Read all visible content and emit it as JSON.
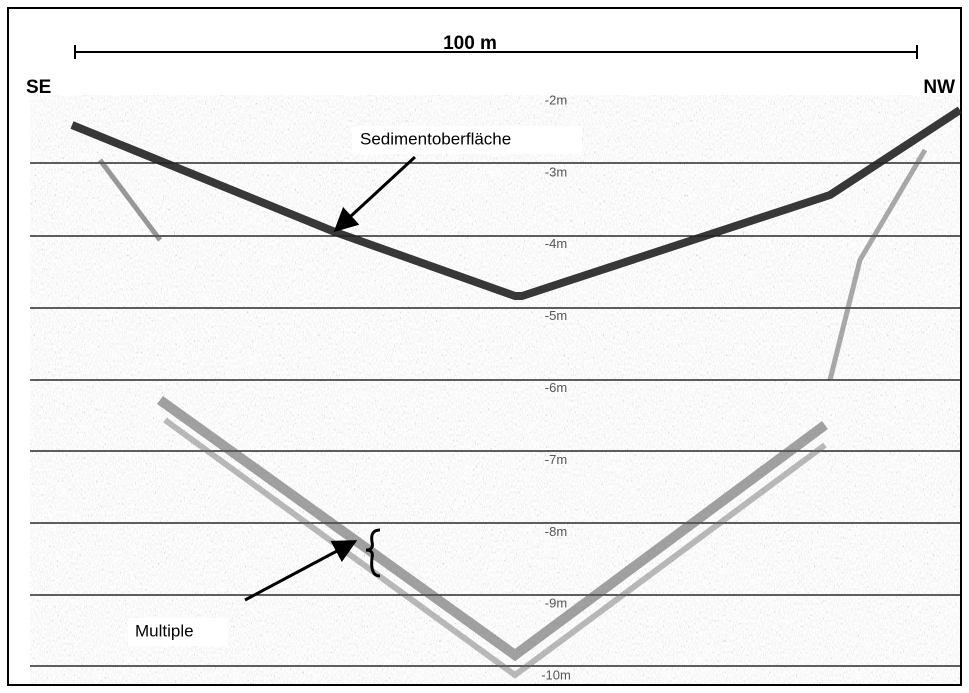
{
  "header": {
    "scale": "100 m",
    "left": "SE",
    "right": "NW"
  },
  "depth_labels": [
    "-2m",
    "-3m",
    "-4m",
    "-5m",
    "-6m",
    "-7m",
    "-8m",
    "-9m",
    "-10m"
  ],
  "annotations": {
    "surface": "Sedimentoberfläche",
    "multiple": "Multiple"
  }
}
